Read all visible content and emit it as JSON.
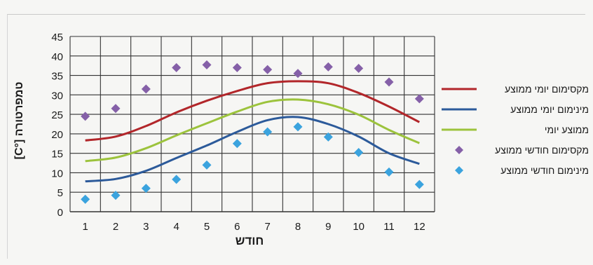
{
  "chart_data": {
    "type": "line",
    "title": "",
    "xlabel": "חודש",
    "ylabel": "טמפרטורה [°C]",
    "categories": [
      "1",
      "2",
      "3",
      "4",
      "5",
      "6",
      "7",
      "8",
      "9",
      "10",
      "11",
      "12"
    ],
    "ylim": [
      0,
      45
    ],
    "yticks": [
      "0",
      "5",
      "10",
      "15",
      "20",
      "25",
      "30",
      "35",
      "40",
      "45"
    ],
    "grid": true,
    "legend_position": "right",
    "series": [
      {
        "name": "מקסימום יומי ממוצע",
        "kind": "line",
        "color": "#b2262a",
        "values": [
          18.3,
          19.3,
          22,
          25.5,
          28.5,
          31,
          33,
          33.5,
          33,
          30.5,
          27,
          23
        ]
      },
      {
        "name": "מינימום יומי ממוצע",
        "kind": "line",
        "color": "#2c5a9a",
        "values": [
          7.8,
          8.4,
          10.5,
          13.8,
          17,
          20.5,
          23.5,
          24.3,
          22.5,
          19.3,
          15,
          12.3
        ]
      },
      {
        "name": "ממוצע יומי",
        "kind": "line",
        "color": "#9cc33c",
        "values": [
          13,
          13.9,
          16.3,
          19.6,
          22.7,
          25.7,
          28.2,
          28.8,
          27.6,
          24.9,
          21,
          17.6
        ]
      },
      {
        "name": "מקסימום חודשי ממוצע",
        "kind": "marker",
        "color": "#8560a8",
        "values": [
          24.5,
          26.5,
          31.5,
          37,
          37.7,
          37,
          36.5,
          35.5,
          37.2,
          36.8,
          33.3,
          29
        ]
      },
      {
        "name": "מינימום חודשי ממוצע",
        "kind": "marker",
        "color": "#3ba3de",
        "values": [
          3.2,
          4.2,
          6,
          8.3,
          12,
          17.5,
          20.5,
          21.8,
          19.2,
          15.2,
          10.2,
          7
        ]
      }
    ]
  }
}
